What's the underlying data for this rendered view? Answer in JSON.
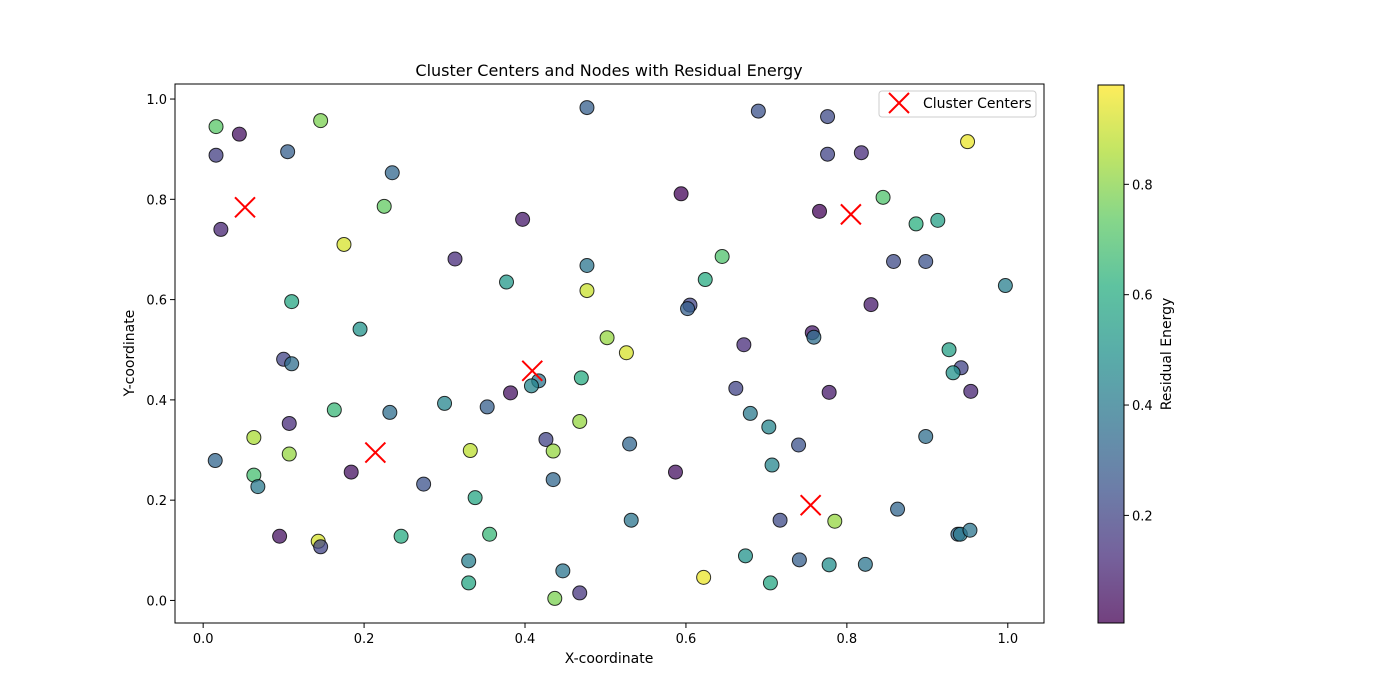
{
  "chart_data": {
    "type": "scatter",
    "title": "Cluster Centers and Nodes with Residual Energy",
    "xlabel": "X-coordinate",
    "ylabel": "Y-coordinate",
    "xlim": [
      -0.035,
      1.045
    ],
    "ylim": [
      -0.045,
      1.03
    ],
    "xticks": [
      "0.0",
      "0.2",
      "0.4",
      "0.6",
      "0.8",
      "1.0"
    ],
    "yticks": [
      "0.0",
      "0.2",
      "0.4",
      "0.6",
      "0.8",
      "1.0"
    ],
    "grid": false,
    "legend": {
      "position": "top-right",
      "entries": [
        "Cluster Centers"
      ]
    },
    "colorbar": {
      "label": "Residual Energy",
      "range": [
        0.005,
        0.98
      ],
      "ticks": [
        "0.2",
        "0.4",
        "0.6",
        "0.8"
      ],
      "colormap": "viridis"
    },
    "nodes": [
      {
        "x": 0.016,
        "y": 0.945,
        "e": 0.72
      },
      {
        "x": 0.045,
        "y": 0.93,
        "e": 0.05
      },
      {
        "x": 0.016,
        "y": 0.888,
        "e": 0.18
      },
      {
        "x": 0.146,
        "y": 0.957,
        "e": 0.78
      },
      {
        "x": 0.105,
        "y": 0.895,
        "e": 0.3
      },
      {
        "x": 0.235,
        "y": 0.853,
        "e": 0.33
      },
      {
        "x": 0.022,
        "y": 0.74,
        "e": 0.1
      },
      {
        "x": 0.225,
        "y": 0.786,
        "e": 0.74
      },
      {
        "x": 0.175,
        "y": 0.71,
        "e": 0.92
      },
      {
        "x": 0.11,
        "y": 0.596,
        "e": 0.58
      },
      {
        "x": 0.195,
        "y": 0.541,
        "e": 0.5
      },
      {
        "x": 0.1,
        "y": 0.481,
        "e": 0.2
      },
      {
        "x": 0.11,
        "y": 0.472,
        "e": 0.35
      },
      {
        "x": 0.163,
        "y": 0.38,
        "e": 0.65
      },
      {
        "x": 0.107,
        "y": 0.353,
        "e": 0.12
      },
      {
        "x": 0.232,
        "y": 0.375,
        "e": 0.35
      },
      {
        "x": 0.063,
        "y": 0.325,
        "e": 0.85
      },
      {
        "x": 0.107,
        "y": 0.292,
        "e": 0.82
      },
      {
        "x": 0.015,
        "y": 0.279,
        "e": 0.32
      },
      {
        "x": 0.063,
        "y": 0.25,
        "e": 0.68
      },
      {
        "x": 0.068,
        "y": 0.227,
        "e": 0.4
      },
      {
        "x": 0.184,
        "y": 0.256,
        "e": 0.05
      },
      {
        "x": 0.274,
        "y": 0.232,
        "e": 0.25
      },
      {
        "x": 0.095,
        "y": 0.128,
        "e": 0.05
      },
      {
        "x": 0.143,
        "y": 0.118,
        "e": 0.92
      },
      {
        "x": 0.146,
        "y": 0.107,
        "e": 0.2
      },
      {
        "x": 0.246,
        "y": 0.128,
        "e": 0.6
      },
      {
        "x": 0.477,
        "y": 0.983,
        "e": 0.3
      },
      {
        "x": 0.397,
        "y": 0.76,
        "e": 0.07
      },
      {
        "x": 0.313,
        "y": 0.681,
        "e": 0.12
      },
      {
        "x": 0.377,
        "y": 0.635,
        "e": 0.52
      },
      {
        "x": 0.477,
        "y": 0.668,
        "e": 0.38
      },
      {
        "x": 0.477,
        "y": 0.618,
        "e": 0.9
      },
      {
        "x": 0.502,
        "y": 0.524,
        "e": 0.82
      },
      {
        "x": 0.526,
        "y": 0.494,
        "e": 0.92
      },
      {
        "x": 0.47,
        "y": 0.444,
        "e": 0.6
      },
      {
        "x": 0.417,
        "y": 0.438,
        "e": 0.38
      },
      {
        "x": 0.408,
        "y": 0.428,
        "e": 0.45
      },
      {
        "x": 0.382,
        "y": 0.414,
        "e": 0.05
      },
      {
        "x": 0.3,
        "y": 0.393,
        "e": 0.45
      },
      {
        "x": 0.353,
        "y": 0.386,
        "e": 0.3
      },
      {
        "x": 0.468,
        "y": 0.357,
        "e": 0.82
      },
      {
        "x": 0.426,
        "y": 0.321,
        "e": 0.2
      },
      {
        "x": 0.332,
        "y": 0.299,
        "e": 0.88
      },
      {
        "x": 0.435,
        "y": 0.298,
        "e": 0.82
      },
      {
        "x": 0.53,
        "y": 0.312,
        "e": 0.32
      },
      {
        "x": 0.435,
        "y": 0.241,
        "e": 0.33
      },
      {
        "x": 0.338,
        "y": 0.205,
        "e": 0.58
      },
      {
        "x": 0.356,
        "y": 0.132,
        "e": 0.65
      },
      {
        "x": 0.532,
        "y": 0.16,
        "e": 0.38
      },
      {
        "x": 0.33,
        "y": 0.079,
        "e": 0.42
      },
      {
        "x": 0.33,
        "y": 0.035,
        "e": 0.58
      },
      {
        "x": 0.447,
        "y": 0.059,
        "e": 0.38
      },
      {
        "x": 0.437,
        "y": 0.004,
        "e": 0.78
      },
      {
        "x": 0.468,
        "y": 0.015,
        "e": 0.15
      },
      {
        "x": 0.594,
        "y": 0.811,
        "e": 0.02
      },
      {
        "x": 0.69,
        "y": 0.976,
        "e": 0.25
      },
      {
        "x": 0.776,
        "y": 0.965,
        "e": 0.22
      },
      {
        "x": 0.776,
        "y": 0.89,
        "e": 0.2
      },
      {
        "x": 0.818,
        "y": 0.893,
        "e": 0.12
      },
      {
        "x": 0.95,
        "y": 0.915,
        "e": 0.95
      },
      {
        "x": 0.645,
        "y": 0.686,
        "e": 0.7
      },
      {
        "x": 0.624,
        "y": 0.64,
        "e": 0.6
      },
      {
        "x": 0.766,
        "y": 0.776,
        "e": 0.02
      },
      {
        "x": 0.845,
        "y": 0.804,
        "e": 0.7
      },
      {
        "x": 0.886,
        "y": 0.751,
        "e": 0.62
      },
      {
        "x": 0.913,
        "y": 0.758,
        "e": 0.55
      },
      {
        "x": 0.858,
        "y": 0.676,
        "e": 0.22
      },
      {
        "x": 0.898,
        "y": 0.676,
        "e": 0.25
      },
      {
        "x": 0.997,
        "y": 0.628,
        "e": 0.42
      },
      {
        "x": 0.605,
        "y": 0.589,
        "e": 0.2
      },
      {
        "x": 0.602,
        "y": 0.582,
        "e": 0.3
      },
      {
        "x": 0.83,
        "y": 0.59,
        "e": 0.07
      },
      {
        "x": 0.757,
        "y": 0.534,
        "e": 0.07
      },
      {
        "x": 0.759,
        "y": 0.525,
        "e": 0.35
      },
      {
        "x": 0.672,
        "y": 0.51,
        "e": 0.12
      },
      {
        "x": 0.927,
        "y": 0.5,
        "e": 0.55
      },
      {
        "x": 0.942,
        "y": 0.464,
        "e": 0.2
      },
      {
        "x": 0.932,
        "y": 0.454,
        "e": 0.5
      },
      {
        "x": 0.662,
        "y": 0.423,
        "e": 0.2
      },
      {
        "x": 0.778,
        "y": 0.415,
        "e": 0.07
      },
      {
        "x": 0.954,
        "y": 0.417,
        "e": 0.1
      },
      {
        "x": 0.68,
        "y": 0.373,
        "e": 0.4
      },
      {
        "x": 0.703,
        "y": 0.346,
        "e": 0.45
      },
      {
        "x": 0.74,
        "y": 0.31,
        "e": 0.25
      },
      {
        "x": 0.898,
        "y": 0.327,
        "e": 0.35
      },
      {
        "x": 0.707,
        "y": 0.27,
        "e": 0.45
      },
      {
        "x": 0.587,
        "y": 0.256,
        "e": 0.05
      },
      {
        "x": 0.863,
        "y": 0.182,
        "e": 0.32
      },
      {
        "x": 0.717,
        "y": 0.16,
        "e": 0.22
      },
      {
        "x": 0.785,
        "y": 0.158,
        "e": 0.82
      },
      {
        "x": 0.938,
        "y": 0.132,
        "e": 0.32
      },
      {
        "x": 0.941,
        "y": 0.132,
        "e": 0.4
      },
      {
        "x": 0.953,
        "y": 0.14,
        "e": 0.38
      },
      {
        "x": 0.674,
        "y": 0.089,
        "e": 0.5
      },
      {
        "x": 0.741,
        "y": 0.081,
        "e": 0.3
      },
      {
        "x": 0.778,
        "y": 0.071,
        "e": 0.48
      },
      {
        "x": 0.823,
        "y": 0.072,
        "e": 0.38
      },
      {
        "x": 0.622,
        "y": 0.046,
        "e": 0.95
      },
      {
        "x": 0.705,
        "y": 0.035,
        "e": 0.58
      }
    ],
    "cluster_centers": [
      {
        "x": 0.052,
        "y": 0.784
      },
      {
        "x": 0.214,
        "y": 0.295
      },
      {
        "x": 0.409,
        "y": 0.458
      },
      {
        "x": 0.805,
        "y": 0.77
      },
      {
        "x": 0.755,
        "y": 0.19
      }
    ]
  }
}
